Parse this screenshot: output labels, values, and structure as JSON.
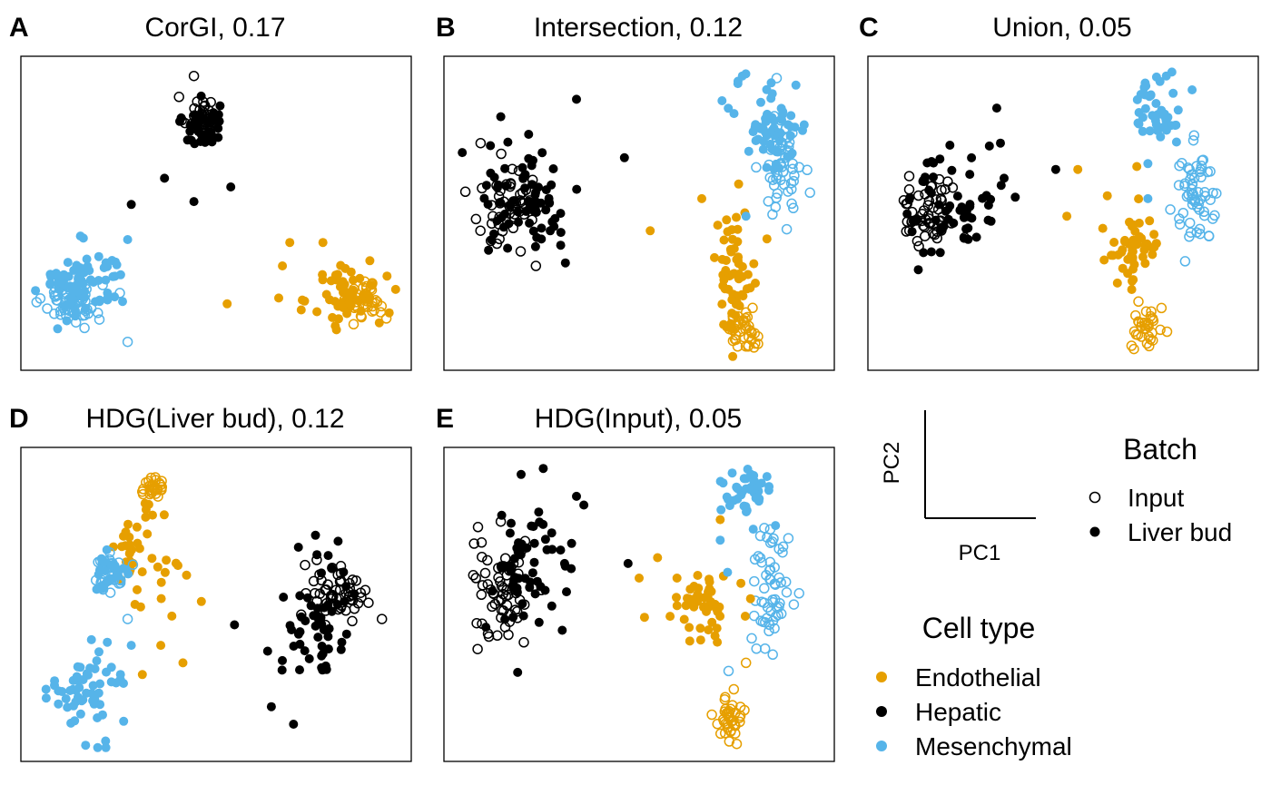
{
  "colors": {
    "endothelial": "#E69F00",
    "hepatic": "#000000",
    "mesenchymal": "#56B4E9"
  },
  "chart_data": [
    {
      "type": "scatter",
      "panel": "A",
      "title": "CorGI, 0.17",
      "clusters": [
        {
          "cell_type": "hepatic",
          "batch": "input",
          "cx": 0.46,
          "cy": 0.83,
          "sx": 0.025,
          "sy": 0.035,
          "n": 40
        },
        {
          "cell_type": "hepatic",
          "batch": "liver_bud",
          "cx": 0.46,
          "cy": 0.8,
          "sx": 0.025,
          "sy": 0.04,
          "n": 45
        },
        {
          "cell_type": "mesenchymal",
          "batch": "input",
          "cx": 0.11,
          "cy": 0.2,
          "sx": 0.04,
          "sy": 0.035,
          "n": 60
        },
        {
          "cell_type": "mesenchymal",
          "batch": "liver_bud",
          "cx": 0.14,
          "cy": 0.26,
          "sx": 0.06,
          "sy": 0.06,
          "n": 75
        },
        {
          "cell_type": "endothelial",
          "batch": "input",
          "cx": 0.91,
          "cy": 0.2,
          "sx": 0.025,
          "sy": 0.035,
          "n": 40
        },
        {
          "cell_type": "endothelial",
          "batch": "liver_bud",
          "cx": 0.86,
          "cy": 0.22,
          "sx": 0.05,
          "sy": 0.06,
          "n": 55
        }
      ],
      "extra_points": [
        {
          "cell_type": "hepatic",
          "batch": "liver_bud",
          "x": 0.36,
          "y": 0.62
        },
        {
          "cell_type": "hepatic",
          "batch": "liver_bud",
          "x": 0.27,
          "y": 0.53
        },
        {
          "cell_type": "hepatic",
          "batch": "liver_bud",
          "x": 0.44,
          "y": 0.54
        },
        {
          "cell_type": "hepatic",
          "batch": "liver_bud",
          "x": 0.54,
          "y": 0.59
        },
        {
          "cell_type": "hepatic",
          "batch": "input",
          "x": 0.44,
          "y": 0.97
        },
        {
          "cell_type": "mesenchymal",
          "batch": "input",
          "x": 0.26,
          "y": 0.06
        },
        {
          "cell_type": "mesenchymal",
          "batch": "liver_bud",
          "x": 0.26,
          "y": 0.41
        },
        {
          "cell_type": "endothelial",
          "batch": "liver_bud",
          "x": 0.53,
          "y": 0.19
        },
        {
          "cell_type": "endothelial",
          "batch": "liver_bud",
          "x": 0.7,
          "y": 0.4
        },
        {
          "cell_type": "endothelial",
          "batch": "liver_bud",
          "x": 0.68,
          "y": 0.32
        },
        {
          "cell_type": "endothelial",
          "batch": "liver_bud",
          "x": 0.79,
          "y": 0.4
        },
        {
          "cell_type": "endothelial",
          "batch": "liver_bud",
          "x": 0.67,
          "y": 0.21
        }
      ]
    },
    {
      "type": "scatter",
      "panel": "B",
      "title": "Intersection, 0.12",
      "clusters": [
        {
          "cell_type": "hepatic",
          "batch": "input",
          "cx": 0.15,
          "cy": 0.52,
          "sx": 0.05,
          "sy": 0.07,
          "n": 50
        },
        {
          "cell_type": "hepatic",
          "batch": "liver_bud",
          "cx": 0.2,
          "cy": 0.55,
          "sx": 0.07,
          "sy": 0.1,
          "n": 70
        },
        {
          "cell_type": "mesenchymal",
          "batch": "liver_bud",
          "cx": 0.86,
          "cy": 0.8,
          "sx": 0.05,
          "sy": 0.08,
          "n": 60
        },
        {
          "cell_type": "mesenchymal",
          "batch": "input",
          "cx": 0.89,
          "cy": 0.66,
          "sx": 0.025,
          "sy": 0.1,
          "n": 55
        },
        {
          "cell_type": "endothelial",
          "batch": "liver_bud",
          "cx": 0.76,
          "cy": 0.31,
          "sx": 0.03,
          "sy": 0.1,
          "n": 55
        },
        {
          "cell_type": "endothelial",
          "batch": "input",
          "cx": 0.78,
          "cy": 0.1,
          "sx": 0.02,
          "sy": 0.03,
          "n": 40
        }
      ],
      "extra_points": [
        {
          "cell_type": "hepatic",
          "batch": "liver_bud",
          "x": 0.33,
          "y": 0.89
        },
        {
          "cell_type": "hepatic",
          "batch": "liver_bud",
          "x": 0.46,
          "y": 0.69
        },
        {
          "cell_type": "hepatic",
          "batch": "liver_bud",
          "x": 0.3,
          "y": 0.33
        },
        {
          "cell_type": "hepatic",
          "batch": "input",
          "x": 0.22,
          "y": 0.32
        },
        {
          "cell_type": "hepatic",
          "batch": "input",
          "x": 0.07,
          "y": 0.74
        },
        {
          "cell_type": "endothelial",
          "batch": "liver_bud",
          "x": 0.53,
          "y": 0.44
        },
        {
          "cell_type": "endothelial",
          "batch": "liver_bud",
          "x": 0.67,
          "y": 0.55
        },
        {
          "cell_type": "endothelial",
          "batch": "liver_bud",
          "x": 0.77,
          "y": 0.6
        },
        {
          "cell_type": "mesenchymal",
          "batch": "liver_bud",
          "x": 0.79,
          "y": 0.49
        },
        {
          "cell_type": "mesenchymal",
          "batch": "liver_bud",
          "x": 0.78,
          "y": 0.97
        }
      ]
    },
    {
      "type": "scatter",
      "panel": "C",
      "title": "Union, 0.05",
      "clusters": [
        {
          "cell_type": "hepatic",
          "batch": "input",
          "cx": 0.14,
          "cy": 0.5,
          "sx": 0.04,
          "sy": 0.07,
          "n": 55
        },
        {
          "cell_type": "hepatic",
          "batch": "liver_bud",
          "cx": 0.2,
          "cy": 0.53,
          "sx": 0.06,
          "sy": 0.09,
          "n": 55
        },
        {
          "cell_type": "mesenchymal",
          "batch": "liver_bud",
          "cx": 0.76,
          "cy": 0.86,
          "sx": 0.04,
          "sy": 0.06,
          "n": 45
        },
        {
          "cell_type": "mesenchymal",
          "batch": "input",
          "cx": 0.86,
          "cy": 0.56,
          "sx": 0.03,
          "sy": 0.08,
          "n": 60
        },
        {
          "cell_type": "endothelial",
          "batch": "liver_bud",
          "cx": 0.69,
          "cy": 0.38,
          "sx": 0.04,
          "sy": 0.06,
          "n": 50
        },
        {
          "cell_type": "endothelial",
          "batch": "input",
          "cx": 0.73,
          "cy": 0.1,
          "sx": 0.02,
          "sy": 0.04,
          "n": 35
        }
      ],
      "extra_points": [
        {
          "cell_type": "hepatic",
          "batch": "liver_bud",
          "x": 0.32,
          "y": 0.86
        },
        {
          "cell_type": "hepatic",
          "batch": "liver_bud",
          "x": 0.33,
          "y": 0.74
        },
        {
          "cell_type": "hepatic",
          "batch": "liver_bud",
          "x": 0.3,
          "y": 0.73
        },
        {
          "cell_type": "hepatic",
          "batch": "liver_bud",
          "x": 0.34,
          "y": 0.62
        },
        {
          "cell_type": "hepatic",
          "batch": "liver_bud",
          "x": 0.48,
          "y": 0.65
        },
        {
          "cell_type": "endothelial",
          "batch": "liver_bud",
          "x": 0.54,
          "y": 0.65
        },
        {
          "cell_type": "endothelial",
          "batch": "liver_bud",
          "x": 0.62,
          "y": 0.56
        },
        {
          "cell_type": "endothelial",
          "batch": "liver_bud",
          "x": 0.51,
          "y": 0.49
        },
        {
          "cell_type": "endothelial",
          "batch": "liver_bud",
          "x": 0.7,
          "y": 0.66
        },
        {
          "cell_type": "mesenchymal",
          "batch": "liver_bud",
          "x": 0.73,
          "y": 0.67
        },
        {
          "cell_type": "mesenchymal",
          "batch": "liver_bud",
          "x": 0.73,
          "y": 0.55
        },
        {
          "cell_type": "mesenchymal",
          "batch": "liver_bud",
          "x": 0.78,
          "y": 0.97
        }
      ]
    },
    {
      "type": "scatter",
      "panel": "D",
      "title": "HDG(Liver bud), 0.12",
      "clusters": [
        {
          "cell_type": "endothelial",
          "batch": "input",
          "cx": 0.33,
          "cy": 0.9,
          "sx": 0.015,
          "sy": 0.02,
          "n": 30
        },
        {
          "cell_type": "endothelial",
          "batch": "liver_bud",
          "cx": 0.28,
          "cy": 0.68,
          "sx": 0.04,
          "sy": 0.07,
          "n": 40
        },
        {
          "cell_type": "mesenchymal",
          "batch": "input",
          "cx": 0.21,
          "cy": 0.6,
          "sx": 0.025,
          "sy": 0.04,
          "n": 40
        },
        {
          "cell_type": "mesenchymal",
          "batch": "liver_bud",
          "cx": 0.22,
          "cy": 0.62,
          "sx": 0.02,
          "sy": 0.03,
          "n": 20
        },
        {
          "cell_type": "mesenchymal",
          "batch": "liver_bud",
          "cx": 0.15,
          "cy": 0.2,
          "sx": 0.05,
          "sy": 0.08,
          "n": 60
        },
        {
          "cell_type": "hepatic",
          "batch": "input",
          "cx": 0.83,
          "cy": 0.55,
          "sx": 0.04,
          "sy": 0.05,
          "n": 55
        },
        {
          "cell_type": "hepatic",
          "batch": "liver_bud",
          "cx": 0.78,
          "cy": 0.45,
          "sx": 0.05,
          "sy": 0.11,
          "n": 55
        }
      ],
      "extra_points": [
        {
          "cell_type": "endothelial",
          "batch": "liver_bud",
          "x": 0.42,
          "y": 0.6
        },
        {
          "cell_type": "endothelial",
          "batch": "liver_bud",
          "x": 0.46,
          "y": 0.51
        },
        {
          "cell_type": "endothelial",
          "batch": "liver_bud",
          "x": 0.38,
          "y": 0.46
        },
        {
          "cell_type": "endothelial",
          "batch": "liver_bud",
          "x": 0.35,
          "y": 0.36
        },
        {
          "cell_type": "endothelial",
          "batch": "liver_bud",
          "x": 0.3,
          "y": 0.26
        },
        {
          "cell_type": "endothelial",
          "batch": "liver_bud",
          "x": 0.41,
          "y": 0.3
        },
        {
          "cell_type": "endothelial",
          "batch": "liver_bud",
          "x": 0.28,
          "y": 0.5
        },
        {
          "cell_type": "mesenchymal",
          "batch": "liver_bud",
          "x": 0.27,
          "y": 0.36
        },
        {
          "cell_type": "mesenchymal",
          "batch": "input",
          "x": 0.26,
          "y": 0.45
        },
        {
          "cell_type": "hepatic",
          "batch": "liver_bud",
          "x": 0.55,
          "y": 0.43
        },
        {
          "cell_type": "hepatic",
          "batch": "liver_bud",
          "x": 0.64,
          "y": 0.34
        },
        {
          "cell_type": "hepatic",
          "batch": "liver_bud",
          "x": 0.65,
          "y": 0.15
        },
        {
          "cell_type": "hepatic",
          "batch": "liver_bud",
          "x": 0.71,
          "y": 0.09
        },
        {
          "cell_type": "hepatic",
          "batch": "input",
          "x": 0.95,
          "y": 0.45
        }
      ]
    },
    {
      "type": "scatter",
      "panel": "E",
      "title": "HDG(Input), 0.05",
      "clusters": [
        {
          "cell_type": "hepatic",
          "batch": "input",
          "cx": 0.13,
          "cy": 0.55,
          "sx": 0.04,
          "sy": 0.1,
          "n": 60
        },
        {
          "cell_type": "hepatic",
          "batch": "liver_bud",
          "cx": 0.2,
          "cy": 0.6,
          "sx": 0.06,
          "sy": 0.11,
          "n": 60
        },
        {
          "cell_type": "mesenchymal",
          "batch": "liver_bud",
          "cx": 0.79,
          "cy": 0.88,
          "sx": 0.035,
          "sy": 0.04,
          "n": 45
        },
        {
          "cell_type": "mesenchymal",
          "batch": "input",
          "cx": 0.86,
          "cy": 0.58,
          "sx": 0.03,
          "sy": 0.11,
          "n": 60
        },
        {
          "cell_type": "endothelial",
          "batch": "liver_bud",
          "cx": 0.68,
          "cy": 0.5,
          "sx": 0.04,
          "sy": 0.05,
          "n": 50
        },
        {
          "cell_type": "endothelial",
          "batch": "input",
          "cx": 0.74,
          "cy": 0.1,
          "sx": 0.02,
          "sy": 0.04,
          "n": 40
        }
      ],
      "extra_points": [
        {
          "cell_type": "hepatic",
          "batch": "liver_bud",
          "x": 0.33,
          "y": 0.87
        },
        {
          "cell_type": "hepatic",
          "batch": "liver_bud",
          "x": 0.35,
          "y": 0.84
        },
        {
          "cell_type": "hepatic",
          "batch": "liver_bud",
          "x": 0.47,
          "y": 0.64
        },
        {
          "cell_type": "hepatic",
          "batch": "input",
          "x": 0.05,
          "y": 0.6
        },
        {
          "cell_type": "endothelial",
          "batch": "liver_bud",
          "x": 0.55,
          "y": 0.66
        },
        {
          "cell_type": "endothelial",
          "batch": "liver_bud",
          "x": 0.5,
          "y": 0.59
        },
        {
          "cell_type": "endothelial",
          "batch": "liver_bud",
          "x": 0.72,
          "y": 0.79
        },
        {
          "cell_type": "mesenchymal",
          "batch": "liver_bud",
          "x": 0.72,
          "y": 0.72
        },
        {
          "cell_type": "mesenchymal",
          "batch": "liver_bud",
          "x": 0.74,
          "y": 0.61
        },
        {
          "cell_type": "mesenchymal",
          "batch": "liver_bud",
          "x": 0.87,
          "y": 0.77
        },
        {
          "cell_type": "endothelial",
          "batch": "input",
          "x": 0.79,
          "y": 0.3
        }
      ]
    }
  ],
  "axis_key": {
    "xlabel": "PC1",
    "ylabel": "PC2"
  },
  "legend_batch": {
    "title": "Batch",
    "items": [
      {
        "label": "Input",
        "batch": "input"
      },
      {
        "label": "Liver bud",
        "batch": "liver_bud"
      }
    ]
  },
  "legend_celltype": {
    "title": "Cell type",
    "items": [
      {
        "label": "Endothelial",
        "cell_type": "endothelial"
      },
      {
        "label": "Hepatic",
        "cell_type": "hepatic"
      },
      {
        "label": "Mesenchymal",
        "cell_type": "mesenchymal"
      }
    ]
  }
}
